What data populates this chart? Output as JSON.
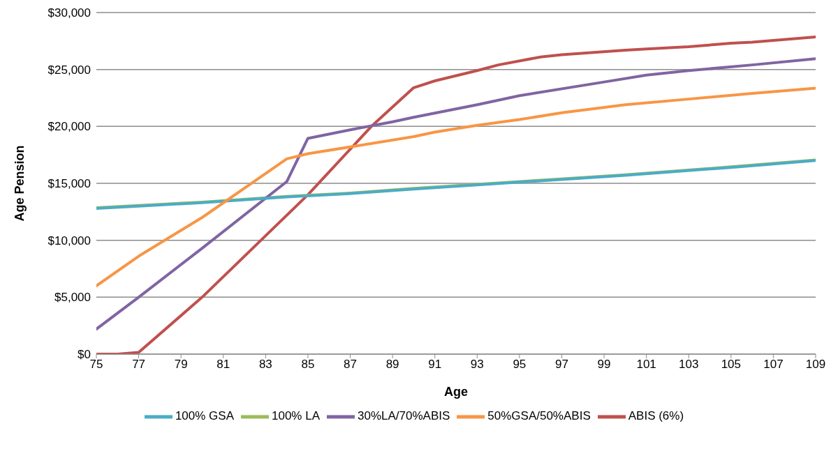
{
  "chart_data": {
    "type": "line",
    "xlabel": "Age",
    "ylabel": "Age Pension",
    "xlim": [
      75,
      109
    ],
    "xticks": [
      75,
      77,
      79,
      81,
      83,
      85,
      87,
      89,
      91,
      93,
      95,
      97,
      99,
      101,
      103,
      105,
      107,
      109
    ],
    "ylim": [
      0,
      30000
    ],
    "yticks": [
      {
        "value": 0,
        "label": "$0"
      },
      {
        "value": 5000,
        "label": "$5,000"
      },
      {
        "value": 10000,
        "label": "$10,000"
      },
      {
        "value": 15000,
        "label": "$15,000"
      },
      {
        "value": 20000,
        "label": "$20,000"
      },
      {
        "value": 25000,
        "label": "$25,000"
      },
      {
        "value": 30000,
        "label": "$30,000"
      }
    ],
    "grid": "y",
    "legend": "bottom",
    "marker": "none",
    "line_style": "solid",
    "series": [
      {
        "name": "ABIS (6%)",
        "color": "#c0504d",
        "x": [
          75,
          76,
          77,
          80,
          85,
          88,
          90,
          91,
          93,
          94,
          96,
          97,
          100,
          101,
          103,
          105,
          106,
          109
        ],
        "values": [
          0,
          0,
          150,
          5000,
          14000,
          20000,
          23400,
          24000,
          24900,
          25400,
          26100,
          26300,
          26700,
          26800,
          27000,
          27300,
          27400,
          27850
        ]
      },
      {
        "name": "100% LA",
        "color": "#9bbb59",
        "x": [
          75,
          77,
          80,
          84,
          87,
          90,
          95,
          100,
          105,
          109
        ],
        "values": [
          12850,
          13050,
          13350,
          13850,
          14150,
          14550,
          15150,
          15750,
          16450,
          17050
        ]
      },
      {
        "name": "30%LA/70%ABIS",
        "color": "#8064a2",
        "x": [
          75,
          77,
          80,
          84,
          85,
          87,
          89,
          90,
          93,
          95,
          99,
          101,
          103,
          106,
          109
        ],
        "values": [
          2200,
          5000,
          9300,
          15150,
          18950,
          19700,
          20400,
          20800,
          21900,
          22700,
          23900,
          24500,
          24900,
          25400,
          25950
        ]
      },
      {
        "name": "100% GSA",
        "color": "#4bacc6",
        "x": [
          75,
          77,
          80,
          84,
          87,
          90,
          95,
          100,
          105,
          109
        ],
        "values": [
          12800,
          13000,
          13300,
          13800,
          14100,
          14500,
          15100,
          15700,
          16400,
          17000
        ]
      },
      {
        "name": "50%GSA/50%ABIS",
        "color": "#f79646",
        "x": [
          75,
          77,
          80,
          84,
          85,
          90,
          91,
          93,
          95,
          97,
          100,
          103,
          106,
          109
        ],
        "values": [
          6000,
          8600,
          12000,
          17150,
          17600,
          19100,
          19500,
          20100,
          20600,
          21200,
          21900,
          22400,
          22900,
          23350
        ]
      }
    ]
  }
}
